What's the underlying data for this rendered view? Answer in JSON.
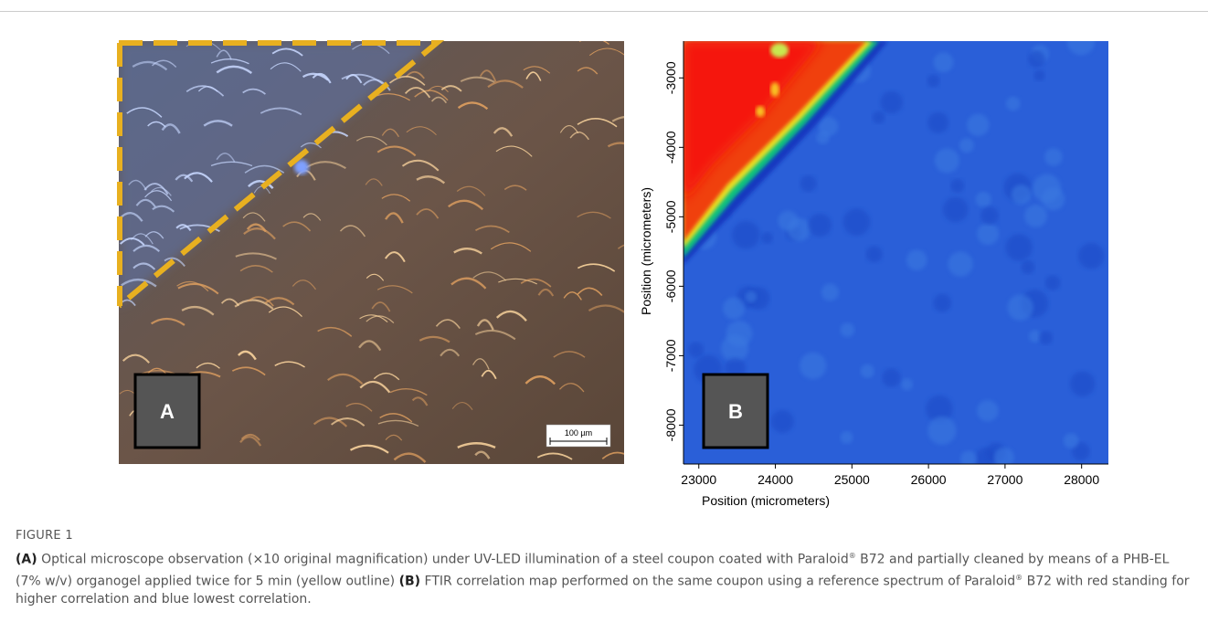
{
  "figure": {
    "panel_a": {
      "label": "A",
      "scale_bar": "100 µm"
    },
    "panel_b": {
      "label": "B",
      "xlabel": "Position (micrometers)",
      "ylabel": "Position (micrometers)",
      "xlim": [
        22800,
        28350
      ],
      "ylim": [
        -8560,
        -2470
      ],
      "xticks": [
        23000,
        24000,
        25000,
        26000,
        27000,
        28000
      ],
      "yticks": [
        -3000,
        -4000,
        -5000,
        -6000,
        -7000,
        -8000
      ]
    },
    "caption": {
      "title": "FIGURE 1",
      "parts": [
        {
          "text": "(A)",
          "style": "bold"
        },
        {
          "text": " Optical microscope observation (×10 original magnification) under UV-LED illumination of a steel coupon coated with Paraloid",
          "style": "normal"
        },
        {
          "text": "®",
          "style": "sup"
        },
        {
          "text": " B72 and partially cleaned by means of a PHB-EL (7% w/v) organogel applied twice for 5 min (yellow outline) ",
          "style": "normal"
        },
        {
          "text": "(B)",
          "style": "bold"
        },
        {
          "text": " FTIR correlation map performed on the same coupon using a reference spectrum of Paraloid",
          "style": "normal"
        },
        {
          "text": "®",
          "style": "sup"
        },
        {
          "text": " B72 with red standing for higher correlation and blue lowest correlation.",
          "style": "normal"
        }
      ]
    }
  }
}
